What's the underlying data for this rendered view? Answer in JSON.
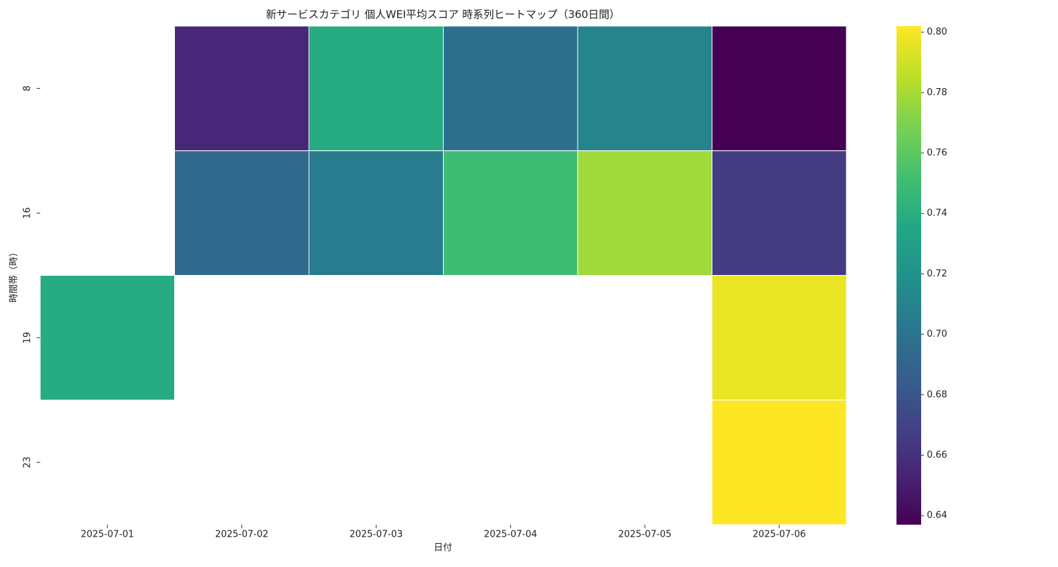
{
  "chart_data": {
    "type": "heatmap",
    "title": "新サービスカテゴリ 個人WEI平均スコア 時系列ヒートマップ（360日間）",
    "x_label": "日付",
    "y_label": "時間帯（時）",
    "categories": [
      "2025-07-01",
      "2025-07-02",
      "2025-07-03",
      "2025-07-04",
      "2025-07-05",
      "2025-07-06"
    ],
    "rows": [
      "8",
      "16",
      "19",
      "23"
    ],
    "values": [
      [
        null,
        0.655,
        0.738,
        0.697,
        0.711,
        0.637
      ],
      [
        null,
        0.693,
        0.705,
        0.75,
        0.778,
        0.666
      ],
      [
        0.738,
        null,
        null,
        null,
        null,
        0.797
      ],
      [
        null,
        null,
        null,
        null,
        null,
        0.802
      ]
    ],
    "colormap": "viridis",
    "clim": [
      0.637,
      0.802
    ],
    "cticks": [
      0.64,
      0.66,
      0.68,
      {
        "value": 0.7,
        "label": "0.70"
      },
      0.72,
      0.74,
      0.76,
      0.78,
      {
        "value": 0.8,
        "label": "0.80"
      }
    ]
  }
}
